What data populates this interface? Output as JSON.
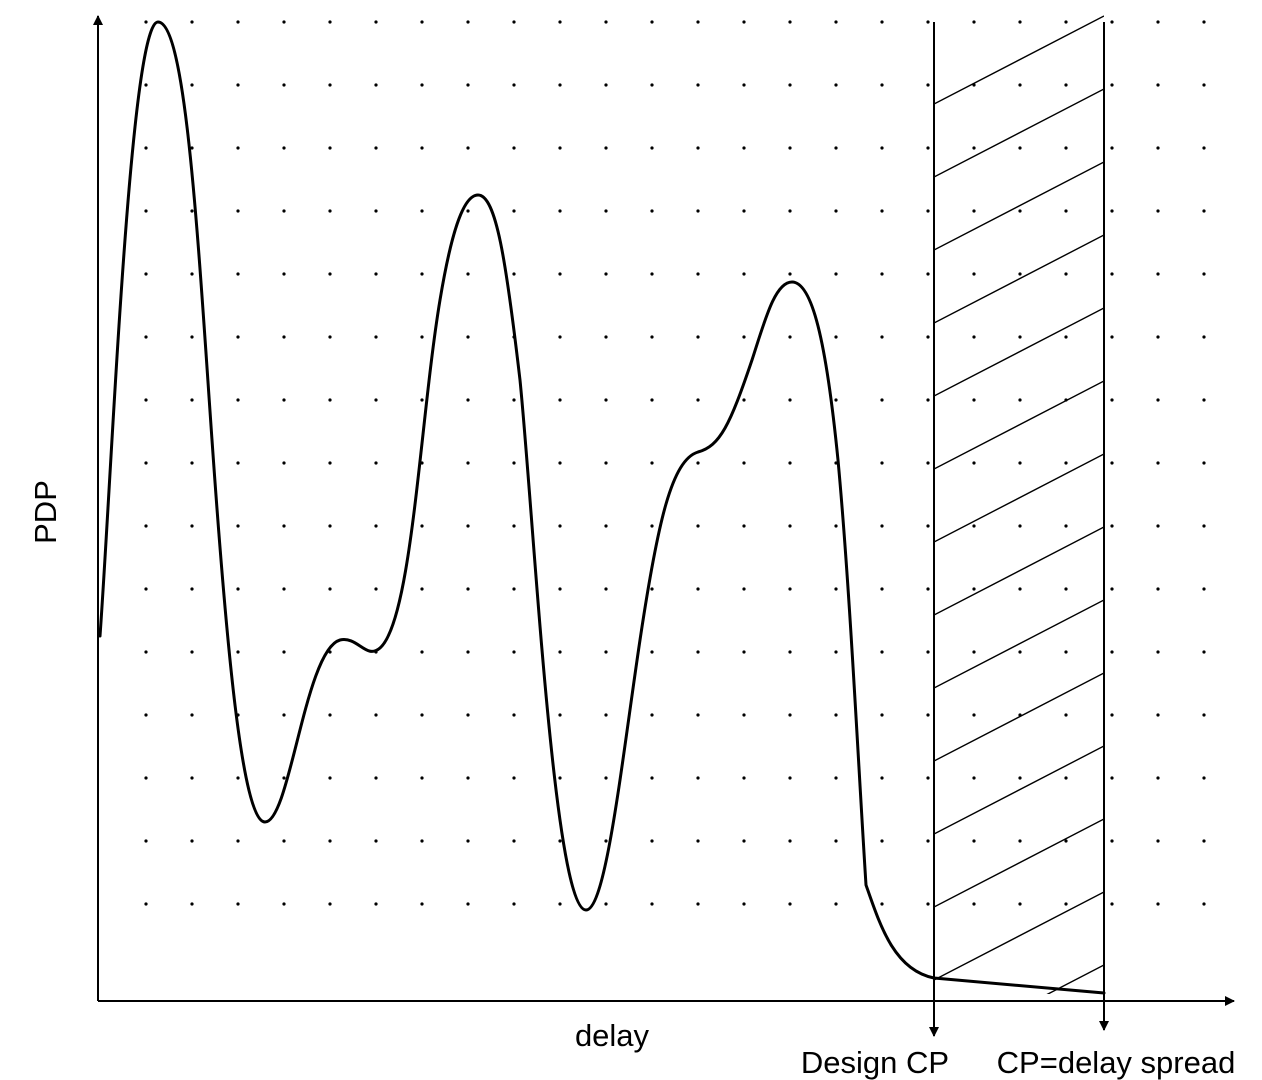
{
  "diagram": {
    "y_axis_label": "PDP",
    "x_axis_label": "delay",
    "markers": [
      {
        "id": "design-cp",
        "label": "Design CP"
      },
      {
        "id": "delay-spread",
        "label": "CP=delay spread"
      }
    ],
    "region": {
      "fill": "hatched",
      "between": [
        "design-cp",
        "delay-spread"
      ]
    },
    "grid": "dotted",
    "curve": "multipath power delay profile with decaying tail"
  }
}
